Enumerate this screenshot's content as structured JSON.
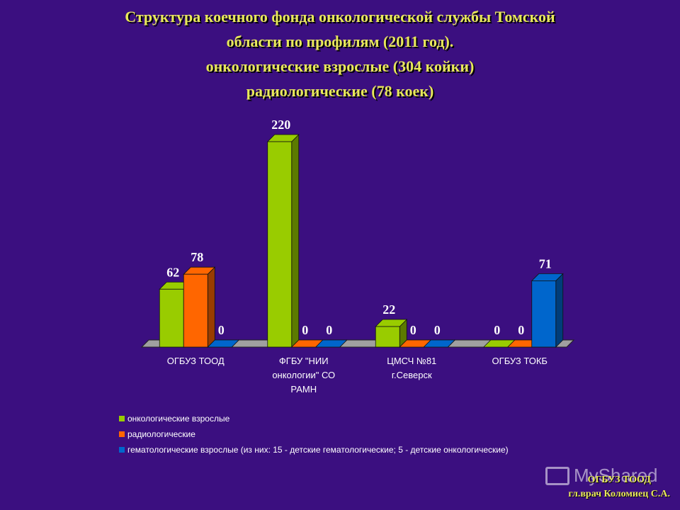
{
  "title": {
    "line1": "Структура коечного фонда онкологической службы Томской",
    "line2": "области по профилям (2011 год).",
    "line3": "онкологические взрослые (304 койки)",
    "line4": "радиологические (78 коек)"
  },
  "chart_data": {
    "type": "bar",
    "categories": [
      [
        "ОГБУЗ ТООД"
      ],
      [
        "ФГБУ \"НИИ",
        "онкологии\" СО",
        "РАМН"
      ],
      [
        "ЦМСЧ №81",
        "г.Северск"
      ],
      [
        "ОГБУЗ ТОКБ"
      ]
    ],
    "series": [
      {
        "name": "онкологические взрослые",
        "values": [
          62,
          220,
          22,
          0
        ],
        "color": "#99cc00"
      },
      {
        "name": "радиологические",
        "values": [
          78,
          0,
          0,
          0
        ],
        "color": "#ff6600"
      },
      {
        "name": "гематологические взрослые (из них: 15 - детские гематологические; 5 - детские онкологические)",
        "values": [
          0,
          0,
          0,
          71
        ],
        "color": "#0066cc"
      }
    ],
    "ylim": [
      0,
      220
    ],
    "grid": false,
    "legend_position": "bottom-left",
    "data_labels": true,
    "style": "3d-clustered"
  },
  "footer": {
    "line1": "ОГБУЗ ТООД",
    "line2": "гл.врач Коломиец С.А."
  },
  "watermark": {
    "text": "MyShared"
  }
}
